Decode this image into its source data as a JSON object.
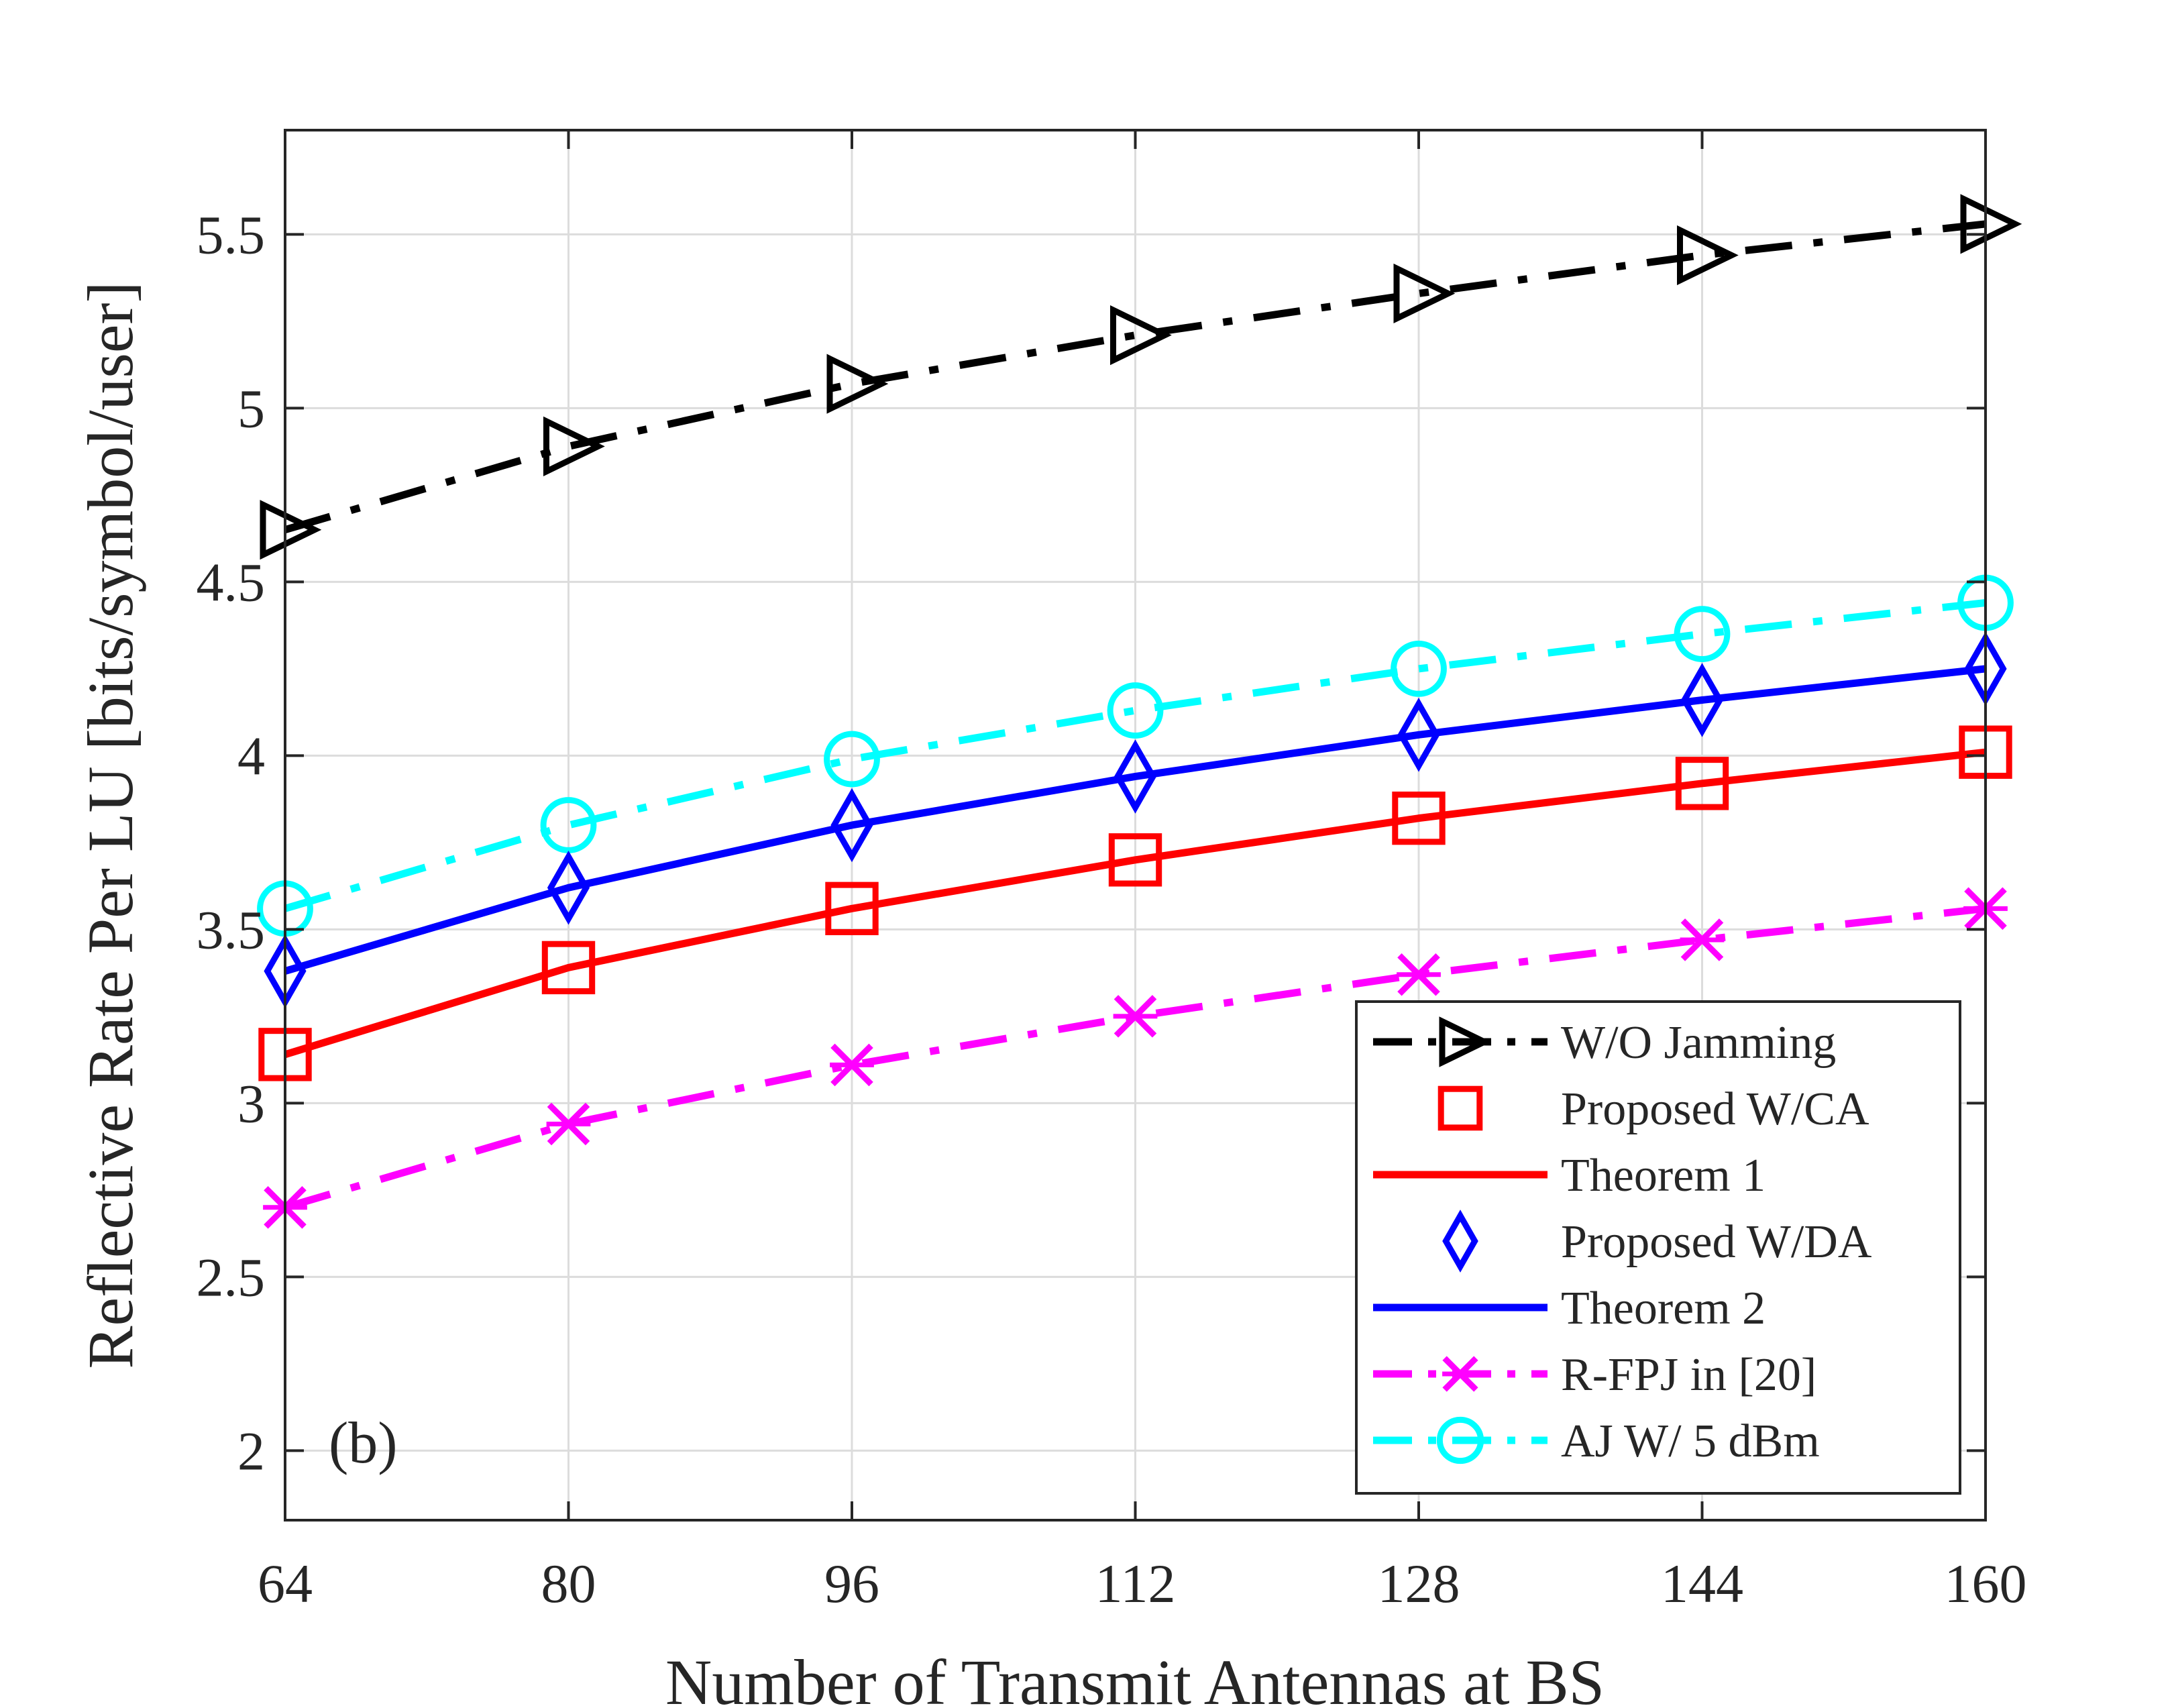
{
  "chart_data": {
    "type": "line",
    "title": "",
    "xlabel": "Number of Transmit Antennas at BS",
    "ylabel": "Reflective Rate Per LU [bits/symbol/user]",
    "x": [
      64,
      80,
      96,
      112,
      128,
      144,
      160
    ],
    "xticks": [
      "64",
      "80",
      "96",
      "112",
      "128",
      "144",
      "160"
    ],
    "yticks": [
      "2",
      "2.5",
      "3",
      "3.5",
      "4",
      "4.5",
      "5",
      "5.5"
    ],
    "xlim": [
      64,
      160
    ],
    "ylim": [
      1.8,
      5.8
    ],
    "grid": true,
    "legend_position": "bottom-right",
    "annotation": "(b)",
    "series": [
      {
        "name": "W/O Jamming",
        "color": "#000000",
        "dash": "dashdot",
        "marker": "triangle-right",
        "values": [
          4.65,
          4.89,
          5.07,
          5.21,
          5.33,
          5.44,
          5.53
        ]
      },
      {
        "name": "AJ W/ 5 dBm",
        "color": "#00ffff",
        "dash": "dashdot",
        "marker": "circle",
        "values": [
          3.56,
          3.8,
          3.99,
          4.13,
          4.25,
          4.35,
          4.44
        ]
      },
      {
        "name": "Proposed W/DA",
        "color": "#0000ff",
        "dash": "none",
        "marker": "diamond",
        "values": [
          3.38,
          3.62,
          3.8,
          3.94,
          4.06,
          4.16,
          4.25
        ]
      },
      {
        "name": "Theorem 2",
        "color": "#0000ff",
        "dash": "solid",
        "marker": "none",
        "values": [
          3.38,
          3.62,
          3.8,
          3.94,
          4.06,
          4.16,
          4.25
        ]
      },
      {
        "name": "Proposed W/CA",
        "color": "#ff0000",
        "dash": "none",
        "marker": "square",
        "values": [
          3.14,
          3.39,
          3.56,
          3.7,
          3.82,
          3.92,
          4.01
        ]
      },
      {
        "name": "Theorem 1",
        "color": "#ff0000",
        "dash": "solid",
        "marker": "none",
        "values": [
          3.14,
          3.39,
          3.56,
          3.7,
          3.82,
          3.92,
          4.01
        ]
      },
      {
        "name": "R-FPJ in [20]",
        "color": "#ff00ff",
        "dash": "dashdot",
        "marker": "x",
        "values": [
          2.7,
          2.94,
          3.11,
          3.25,
          3.37,
          3.47,
          3.56
        ]
      }
    ],
    "legend": [
      {
        "label": "W/O Jamming",
        "color": "#000000",
        "dash": "dashdot",
        "marker": "triangle-right"
      },
      {
        "label": "Proposed W/CA",
        "color": "#ff0000",
        "dash": "none",
        "marker": "square"
      },
      {
        "label": "Theorem 1",
        "color": "#ff0000",
        "dash": "solid",
        "marker": "none"
      },
      {
        "label": "Proposed W/DA",
        "color": "#0000ff",
        "dash": "none",
        "marker": "diamond"
      },
      {
        "label": "Theorem 2",
        "color": "#0000ff",
        "dash": "solid",
        "marker": "none"
      },
      {
        "label": "R-FPJ in [20]",
        "color": "#ff00ff",
        "dash": "dashdot",
        "marker": "x"
      },
      {
        "label": "AJ W/ 5 dBm",
        "color": "#00ffff",
        "dash": "dashdot",
        "marker": "circle"
      }
    ]
  }
}
